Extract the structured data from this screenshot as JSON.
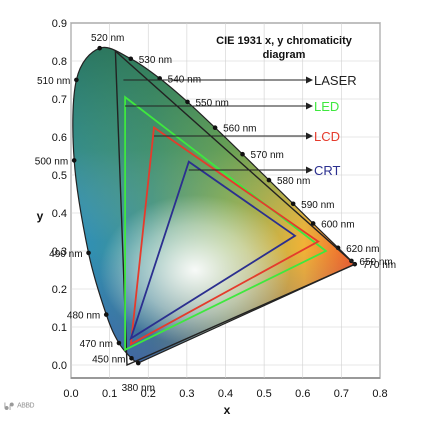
{
  "chart_data": {
    "type": "scatter",
    "title": "CIE 1931 x, y chromaticity",
    "subtitle": "diagram",
    "xlabel": "x",
    "ylabel": "y",
    "xlim": [
      0,
      0.8
    ],
    "ylim": [
      0,
      0.9
    ],
    "x_ticks": [
      "0.0",
      "0.1",
      "0.2",
      "0.3",
      "0.4",
      "0.5",
      "0.6",
      "0.7",
      "0.8"
    ],
    "y_ticks": [
      "0.0",
      "0.1",
      "0.2",
      "0.3",
      "0.4",
      "0.5",
      "0.6",
      "0.7",
      "0.8",
      "0.9"
    ],
    "spectral_locus": [
      {
        "label": "380 nm",
        "x": 0.1741,
        "y": 0.005
      },
      {
        "label": "450 nm",
        "x": 0.1566,
        "y": 0.0177
      },
      {
        "label": "470 nm",
        "x": 0.1241,
        "y": 0.0578
      },
      {
        "label": "480 nm",
        "x": 0.0913,
        "y": 0.1327
      },
      {
        "label": "490 nm",
        "x": 0.0454,
        "y": 0.295
      },
      {
        "label": "500 nm",
        "x": 0.0082,
        "y": 0.5384
      },
      {
        "label": "510 nm",
        "x": 0.0139,
        "y": 0.7502
      },
      {
        "label": "520 nm",
        "x": 0.0743,
        "y": 0.8338
      },
      {
        "label": "530 nm",
        "x": 0.1547,
        "y": 0.8059
      },
      {
        "label": "540 nm",
        "x": 0.2296,
        "y": 0.7543
      },
      {
        "label": "550 nm",
        "x": 0.3016,
        "y": 0.6923
      },
      {
        "label": "560 nm",
        "x": 0.3731,
        "y": 0.6245
      },
      {
        "label": "570 nm",
        "x": 0.4441,
        "y": 0.5547
      },
      {
        "label": "580 nm",
        "x": 0.5125,
        "y": 0.4866
      },
      {
        "label": "590 nm",
        "x": 0.5752,
        "y": 0.4242
      },
      {
        "label": "600 nm",
        "x": 0.627,
        "y": 0.3725
      },
      {
        "label": "620 nm",
        "x": 0.6915,
        "y": 0.3083
      },
      {
        "label": "650 nm",
        "x": 0.726,
        "y": 0.274
      },
      {
        "label": "770 nm",
        "x": 0.7347,
        "y": 0.2653
      }
    ],
    "series": [
      {
        "name": "LASER",
        "color": "#222222",
        "points": [
          [
            0.145,
            0.0
          ],
          [
            0.115,
            0.826
          ],
          [
            0.735,
            0.265
          ]
        ]
      },
      {
        "name": "LED",
        "color": "#3ee83e",
        "points": [
          [
            0.14,
            0.04
          ],
          [
            0.14,
            0.705
          ],
          [
            0.66,
            0.3
          ]
        ]
      },
      {
        "name": "LCD",
        "color": "#e53b2c",
        "points": [
          [
            0.155,
            0.055
          ],
          [
            0.215,
            0.625
          ],
          [
            0.64,
            0.325
          ]
        ]
      },
      {
        "name": "CRT",
        "color": "#2b2f8f",
        "points": [
          [
            0.155,
            0.07
          ],
          [
            0.305,
            0.535
          ],
          [
            0.58,
            0.34
          ]
        ]
      }
    ]
  },
  "watermark": "ᖲᖰ ᴬᴮᴮᴰ"
}
